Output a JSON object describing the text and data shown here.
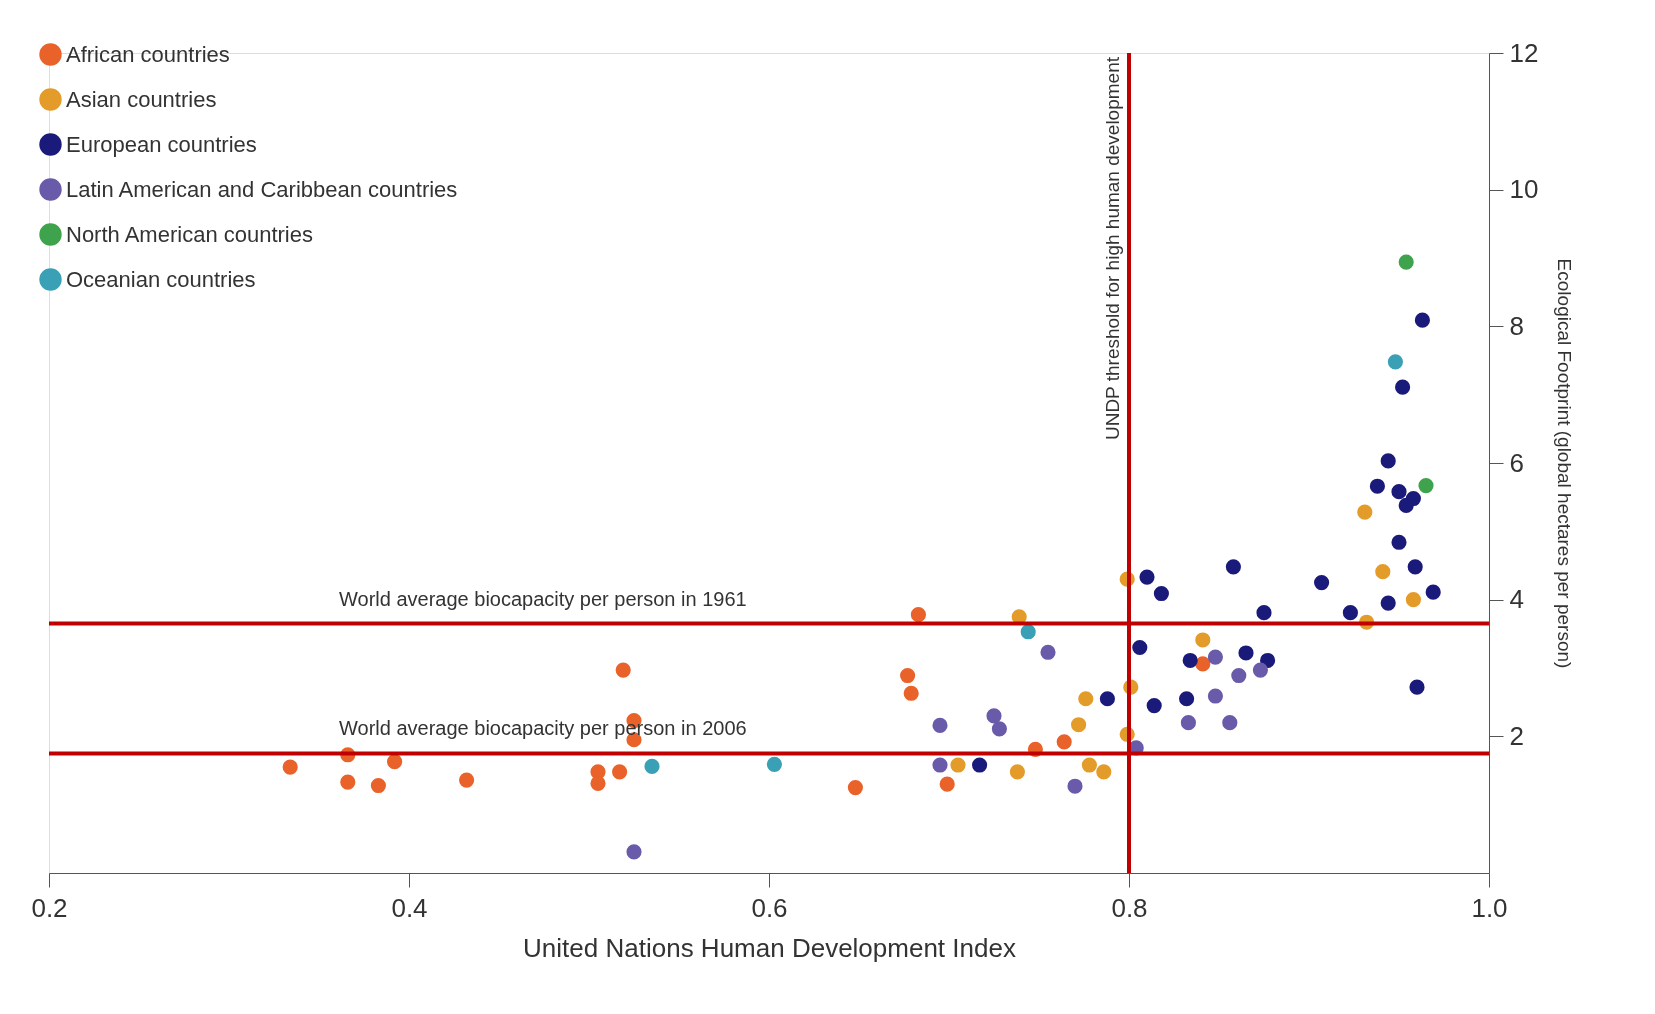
{
  "chart_data": {
    "type": "scatter",
    "xlabel": "United Nations Human Development Index",
    "ylabel": "Ecological Footprint (global hectares per person)",
    "xlim": [
      0.2,
      1.0
    ],
    "xticks": [
      0.2,
      0.4,
      0.6,
      0.8,
      {
        "value": 1.0,
        "label": "1.0"
      }
    ],
    "ylim": [
      0,
      12
    ],
    "yticks": [
      2,
      4,
      6,
      8,
      10,
      12
    ],
    "grid": false,
    "legend": "top left",
    "marker": "circle",
    "ref_lines": [
      {
        "axis": "y",
        "value": 3.65,
        "label": "World average biocapacity per person in 1961",
        "color": "#c00000"
      },
      {
        "axis": "y",
        "value": 1.75,
        "label": "World average biocapacity per person in 2006",
        "color": "#c00000"
      },
      {
        "axis": "x",
        "value": 0.8,
        "label": "UNDP threshold for high human development",
        "color": "#c00000"
      }
    ],
    "series": [
      {
        "name": "African countries",
        "color": "#e8622a",
        "x": [
          0.334,
          0.366,
          0.366,
          0.383,
          0.392,
          0.432,
          0.505,
          0.505,
          0.517,
          0.519,
          0.525,
          0.525,
          0.648,
          0.677,
          0.679,
          0.683,
          0.699,
          0.748,
          0.764,
          0.841
        ],
        "values": [
          1.55,
          1.73,
          1.33,
          1.28,
          1.63,
          1.36,
          1.48,
          1.31,
          1.48,
          2.97,
          2.23,
          1.95,
          1.25,
          2.89,
          2.63,
          3.78,
          1.3,
          1.81,
          1.92,
          3.06
        ]
      },
      {
        "name": "Asian countries",
        "color": "#e39b2a",
        "x": [
          0.776,
          0.772,
          0.738,
          0.705,
          0.739,
          0.801,
          0.799,
          0.778,
          0.786,
          0.799,
          0.931,
          0.941,
          0.958,
          0.932,
          0.841
        ],
        "values": [
          2.55,
          2.17,
          1.48,
          1.58,
          3.75,
          2.72,
          2.03,
          1.58,
          1.48,
          4.3,
          5.28,
          4.41,
          4.0,
          3.67,
          3.41
        ]
      },
      {
        "name": "European countries",
        "color": "#1a1a7a",
        "x": [
          0.788,
          0.717,
          0.81,
          0.818,
          0.806,
          0.814,
          0.858,
          0.907,
          0.923,
          0.875,
          0.963,
          0.952,
          0.944,
          0.938,
          0.95,
          0.958,
          0.954,
          0.95,
          0.959,
          0.969,
          0.944,
          0.834,
          0.865,
          0.877,
          0.832,
          0.96
        ],
        "values": [
          2.55,
          1.58,
          4.33,
          4.09,
          3.3,
          2.45,
          4.48,
          4.25,
          3.81,
          3.81,
          8.09,
          7.11,
          6.03,
          5.66,
          5.58,
          5.48,
          5.38,
          4.84,
          4.48,
          4.11,
          3.95,
          3.11,
          3.22,
          3.11,
          2.55,
          2.72
        ]
      },
      {
        "name": "Latin American and Caribbean countries",
        "color": "#6a5aaa",
        "x": [
          0.755,
          0.695,
          0.725,
          0.728,
          0.695,
          0.77,
          0.525,
          0.848,
          0.861,
          0.873,
          0.848,
          0.833,
          0.856,
          0.804
        ],
        "values": [
          3.23,
          2.16,
          2.3,
          2.11,
          1.58,
          1.27,
          0.31,
          3.16,
          2.89,
          2.97,
          2.59,
          2.2,
          2.2,
          1.83
        ]
      },
      {
        "name": "North American countries",
        "color": "#3fa34d",
        "x": [
          0.954,
          0.965
        ],
        "values": [
          8.94,
          5.67
        ]
      },
      {
        "name": "Oceanian countries",
        "color": "#3aa0b5",
        "x": [
          0.948,
          0.535,
          0.603,
          0.744
        ],
        "values": [
          7.48,
          1.56,
          1.59,
          3.53
        ]
      }
    ]
  }
}
